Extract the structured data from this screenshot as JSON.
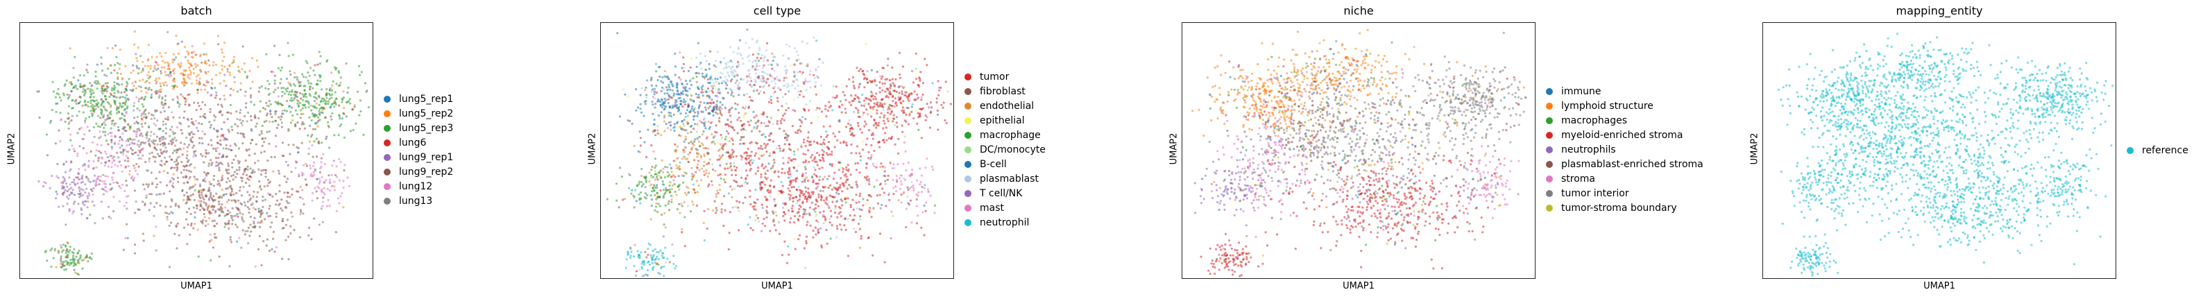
{
  "chart_data": [
    {
      "type": "scatter",
      "title": "batch",
      "xlabel": "UMAP1",
      "ylabel": "UMAP2",
      "legend_position": "right",
      "categories": [
        "lung5_rep1",
        "lung5_rep2",
        "lung5_rep3",
        "lung6",
        "lung9_rep1",
        "lung9_rep2",
        "lung12",
        "lung13"
      ],
      "colors": [
        "#1f77b4",
        "#ff7f0e",
        "#2ca02c",
        "#d62728",
        "#9467bd",
        "#8c564b",
        "#e377c2",
        "#7f7f7f"
      ]
    },
    {
      "type": "scatter",
      "title": "cell type",
      "xlabel": "UMAP1",
      "ylabel": "UMAP2",
      "legend_position": "right",
      "categories": [
        "tumor",
        "fibroblast",
        "endothelial",
        "epithelial",
        "macrophage",
        "DC/monocyte",
        "B-cell",
        "plasmablast",
        "T cell/NK",
        "mast",
        "neutrophil"
      ],
      "colors": [
        "#d62728",
        "#8c564b",
        "#e6862c",
        "#f2f25a",
        "#2ca02c",
        "#98df8a",
        "#1f77b4",
        "#aec7e8",
        "#9467bd",
        "#e377c2",
        "#17becf"
      ]
    },
    {
      "type": "scatter",
      "title": "niche",
      "xlabel": "UMAP1",
      "ylabel": "UMAP2",
      "legend_position": "right",
      "categories": [
        "immune",
        "lymphoid structure",
        "macrophages",
        "myeloid-enriched stroma",
        "neutrophils",
        "plasmablast-enriched stroma",
        "stroma",
        "tumor interior",
        "tumor-stroma boundary"
      ],
      "colors": [
        "#1f77b4",
        "#ff7f0e",
        "#2ca02c",
        "#d62728",
        "#9467bd",
        "#8c564b",
        "#e377c2",
        "#7f7f7f",
        "#bcbd22"
      ]
    },
    {
      "type": "scatter",
      "title": "mapping_entity",
      "xlabel": "UMAP1",
      "ylabel": "UMAP2",
      "legend_position": "right",
      "categories": [
        "reference"
      ],
      "colors": [
        "#17becf"
      ]
    }
  ]
}
